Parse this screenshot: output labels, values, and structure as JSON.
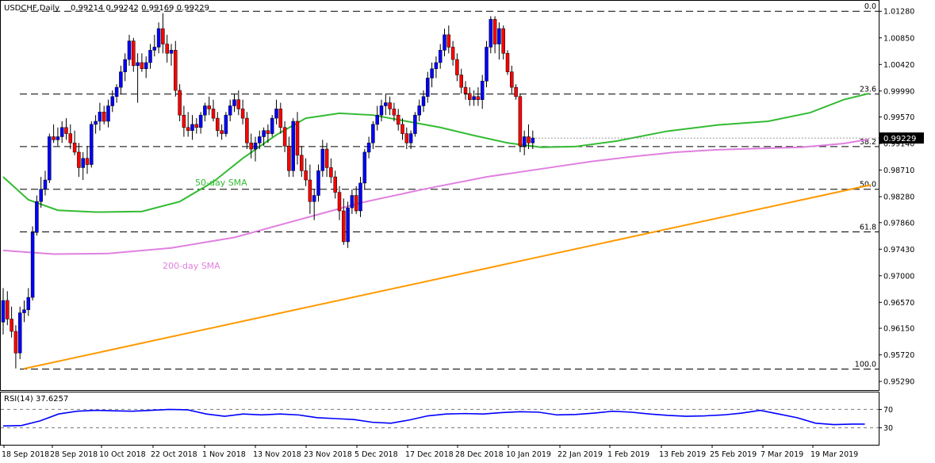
{
  "header": {
    "symbol": "USDCHF,Daily",
    "ohlc": "0.99214 0.99242 0.99169 0.99229"
  },
  "chart_data": {
    "type": "candlestick",
    "instrument": "USDCHF",
    "timeframe": "Daily",
    "ylim": [
      0.9515,
      1.0145
    ],
    "y_ticks": [
      "1.01280",
      "1.00850",
      "1.00420",
      "0.99990",
      "0.99570",
      "0.99140",
      "0.98710",
      "0.98280",
      "0.97860",
      "0.97430",
      "0.97000",
      "0.96570",
      "0.96150",
      "0.95720",
      "0.95290"
    ],
    "x_ticks": [
      "18 Sep 2018",
      "28 Sep 2018",
      "10 Oct 2018",
      "22 Oct 2018",
      "1 Nov 2018",
      "13 Nov 2018",
      "23 Nov 2018",
      "5 Dec 2018",
      "17 Dec 2018",
      "28 Dec 2018",
      "10 Jan 2019",
      "22 Jan 2019",
      "1 Feb 2019",
      "13 Feb 2019",
      "25 Feb 2019",
      "7 Mar 2019",
      "19 Mar 2019"
    ],
    "current_price": "0.99229",
    "colors": {
      "up": "#0000ff",
      "down": "#ff0000",
      "sma50": "#33bb33",
      "sma200": "#e080e0",
      "trendline": "#ff9900",
      "rsi": "#0000ff"
    },
    "fibonacci": [
      {
        "label": "0.0",
        "value": 1.0128
      },
      {
        "label": "23.6",
        "value": 0.9994
      },
      {
        "label": "38.2",
        "value": 0.9909
      },
      {
        "label": "50.0",
        "value": 0.984
      },
      {
        "label": "61.8",
        "value": 0.9771
      },
      {
        "label": "100.0",
        "value": 0.9549
      }
    ],
    "annotations": {
      "sma50": "50-day SMA",
      "sma200": "200-day SMA"
    },
    "trendline": [
      [
        0.95495,
        0
      ],
      [
        0.9847,
        121
      ]
    ],
    "candles": [
      [
        0.9625,
        0.968,
        0.9605,
        0.966
      ],
      [
        0.966,
        0.9675,
        0.962,
        0.963
      ],
      [
        0.963,
        0.965,
        0.96,
        0.961
      ],
      [
        0.961,
        0.962,
        0.955,
        0.9575
      ],
      [
        0.9575,
        0.965,
        0.9565,
        0.964
      ],
      [
        0.964,
        0.966,
        0.9625,
        0.9645
      ],
      [
        0.9645,
        0.968,
        0.9635,
        0.9665
      ],
      [
        0.9665,
        0.978,
        0.966,
        0.977
      ],
      [
        0.977,
        0.983,
        0.9765,
        0.982
      ],
      [
        0.982,
        0.986,
        0.981,
        0.984
      ],
      [
        0.984,
        0.987,
        0.983,
        0.9855
      ],
      [
        0.9855,
        0.993,
        0.985,
        0.9925
      ],
      [
        0.9925,
        0.9945,
        0.9915,
        0.992
      ],
      [
        0.992,
        0.994,
        0.991,
        0.9925
      ],
      [
        0.9925,
        0.995,
        0.9915,
        0.994
      ],
      [
        0.994,
        0.9955,
        0.992,
        0.993
      ],
      [
        0.993,
        0.9945,
        0.9905,
        0.9915
      ],
      [
        0.9915,
        0.9935,
        0.9895,
        0.99
      ],
      [
        0.99,
        0.9915,
        0.986,
        0.9875
      ],
      [
        0.9875,
        0.99,
        0.9855,
        0.989
      ],
      [
        0.989,
        0.991,
        0.9865,
        0.988
      ],
      [
        0.988,
        0.995,
        0.9875,
        0.9945
      ],
      [
        0.9945,
        0.996,
        0.993,
        0.995
      ],
      [
        0.995,
        0.998,
        0.9935,
        0.9965
      ],
      [
        0.9965,
        0.9975,
        0.9945,
        0.995
      ],
      [
        0.995,
        0.9985,
        0.994,
        0.9975
      ],
      [
        0.9975,
        1.0,
        0.9965,
        0.999
      ],
      [
        0.999,
        1.001,
        0.998,
        1.0005
      ],
      [
        1.0005,
        1.004,
        0.9995,
        1.003
      ],
      [
        1.003,
        1.006,
        1.0015,
        1.005
      ],
      [
        1.005,
        1.009,
        1.004,
        1.008
      ],
      [
        1.008,
        1.0085,
        1.003,
        1.004
      ],
      [
        1.004,
        1.006,
        0.998,
        1.0045
      ],
      [
        1.0045,
        1.006,
        1.003,
        1.0035
      ],
      [
        1.0035,
        1.0055,
        1.002,
        1.0045
      ],
      [
        1.0045,
        1.0075,
        1.0035,
        1.0065
      ],
      [
        1.0065,
        1.009,
        1.0055,
        1.007
      ],
      [
        1.007,
        1.011,
        1.006,
        1.01
      ],
      [
        1.01,
        1.0125,
        1.006,
        1.0075
      ],
      [
        1.0075,
        1.009,
        1.0045,
        1.006
      ],
      [
        1.006,
        1.0075,
        1.004,
        1.0065
      ],
      [
        1.0065,
        1.008,
        0.999,
        1.0
      ],
      [
        1.0,
        1.001,
        0.995,
        0.996
      ],
      [
        0.996,
        0.9975,
        0.9925,
        0.994
      ],
      [
        0.994,
        0.9965,
        0.9925,
        0.9935
      ],
      [
        0.9935,
        0.996,
        0.992,
        0.9945
      ],
      [
        0.9945,
        0.9955,
        0.993,
        0.994
      ],
      [
        0.994,
        0.9965,
        0.993,
        0.996
      ],
      [
        0.996,
        0.998,
        0.995,
        0.9975
      ],
      [
        0.9975,
        0.999,
        0.996,
        0.997
      ],
      [
        0.997,
        0.9985,
        0.995,
        0.9955
      ],
      [
        0.9955,
        0.9965,
        0.9925,
        0.9935
      ],
      [
        0.9935,
        0.9945,
        0.992,
        0.993
      ],
      [
        0.993,
        0.9965,
        0.9925,
        0.996
      ],
      [
        0.996,
        0.9985,
        0.995,
        0.9975
      ],
      [
        0.9975,
        0.9995,
        0.9965,
        0.9985
      ],
      [
        0.9985,
        1.0,
        0.996,
        0.997
      ],
      [
        0.997,
        0.9985,
        0.9945,
        0.9955
      ],
      [
        0.9955,
        0.9965,
        0.9905,
        0.9915
      ],
      [
        0.9915,
        0.993,
        0.989,
        0.9905
      ],
      [
        0.9905,
        0.9925,
        0.9885,
        0.9915
      ],
      [
        0.9915,
        0.9935,
        0.9905,
        0.9925
      ],
      [
        0.9925,
        0.994,
        0.991,
        0.9935
      ],
      [
        0.9935,
        0.9945,
        0.9915,
        0.993
      ],
      [
        0.993,
        0.996,
        0.9925,
        0.9955
      ],
      [
        0.9955,
        0.9985,
        0.9945,
        0.997
      ],
      [
        0.997,
        0.998,
        0.993,
        0.994
      ],
      [
        0.994,
        0.995,
        0.99,
        0.991
      ],
      [
        0.991,
        0.9925,
        0.986,
        0.987
      ],
      [
        0.987,
        0.9955,
        0.986,
        0.995
      ],
      [
        0.995,
        0.9965,
        0.988,
        0.9895
      ],
      [
        0.9895,
        0.991,
        0.986,
        0.987
      ],
      [
        0.987,
        0.989,
        0.9845,
        0.9855
      ],
      [
        0.9855,
        0.988,
        0.98,
        0.982
      ],
      [
        0.982,
        0.984,
        0.979,
        0.983
      ],
      [
        0.983,
        0.988,
        0.982,
        0.987
      ],
      [
        0.987,
        0.992,
        0.986,
        0.9905
      ],
      [
        0.9905,
        0.9915,
        0.986,
        0.9875
      ],
      [
        0.9875,
        0.989,
        0.985,
        0.986
      ],
      [
        0.986,
        0.987,
        0.9825,
        0.9835
      ],
      [
        0.9835,
        0.9845,
        0.979,
        0.9805
      ],
      [
        0.9805,
        0.9825,
        0.975,
        0.9755
      ],
      [
        0.9755,
        0.982,
        0.9745,
        0.981
      ],
      [
        0.981,
        0.984,
        0.98,
        0.983
      ],
      [
        0.983,
        0.9845,
        0.98,
        0.9805
      ],
      [
        0.9805,
        0.986,
        0.9795,
        0.985
      ],
      [
        0.985,
        0.9905,
        0.984,
        0.99
      ],
      [
        0.99,
        0.9925,
        0.989,
        0.9915
      ],
      [
        0.9915,
        0.995,
        0.9905,
        0.9945
      ],
      [
        0.9945,
        0.9975,
        0.9935,
        0.996
      ],
      [
        0.996,
        0.9985,
        0.995,
        0.9975
      ],
      [
        0.9975,
        0.9995,
        0.996,
        0.998
      ],
      [
        0.998,
        0.999,
        0.996,
        0.997
      ],
      [
        0.997,
        0.998,
        0.995,
        0.996
      ],
      [
        0.996,
        0.997,
        0.9935,
        0.9945
      ],
      [
        0.9945,
        0.9955,
        0.992,
        0.993
      ],
      [
        0.993,
        0.994,
        0.9905,
        0.9915
      ],
      [
        0.9915,
        0.9935,
        0.9905,
        0.993
      ],
      [
        0.993,
        0.9965,
        0.9925,
        0.996
      ],
      [
        0.996,
        0.9985,
        0.995,
        0.9975
      ],
      [
        0.9975,
        1.0,
        0.9965,
        0.999
      ],
      [
        0.999,
        1.003,
        0.998,
        1.002
      ],
      [
        1.002,
        1.0045,
        1.0005,
        1.0035
      ],
      [
        1.0035,
        1.0055,
        1.002,
        1.0045
      ],
      [
        1.0045,
        1.0075,
        1.0035,
        1.0065
      ],
      [
        1.0065,
        1.01,
        1.0055,
        1.009
      ],
      [
        1.009,
        1.0105,
        1.006,
        1.007
      ],
      [
        1.007,
        1.008,
        1.004,
        1.005
      ],
      [
        1.005,
        1.006,
        1.0015,
        1.0025
      ],
      [
        1.0025,
        1.0035,
        0.9995,
        1.0005
      ],
      [
        1.0005,
        1.0015,
        0.9985,
        0.9995
      ],
      [
        0.9995,
        1.0005,
        0.9975,
        0.9985
      ],
      [
        0.9985,
        1.0,
        0.9975,
        0.999
      ],
      [
        0.999,
        1.0005,
        0.9975,
        0.9985
      ],
      [
        0.9985,
        1.0025,
        0.997,
        1.0015
      ],
      [
        1.0015,
        1.008,
        1.0005,
        1.007
      ],
      [
        1.007,
        1.012,
        1.006,
        1.0115
      ],
      [
        1.0115,
        1.012,
        1.006,
        1.0075
      ],
      [
        1.0075,
        1.011,
        1.005,
        1.01
      ],
      [
        1.01,
        1.0105,
        1.005,
        1.006
      ],
      [
        1.006,
        1.0065,
        1.0025,
        1.003
      ],
      [
        1.003,
        1.004,
        0.9995,
        1.0005
      ],
      [
        1.0005,
        1.001,
        0.9985,
        0.999
      ],
      [
        0.999,
        0.9995,
        0.99,
        0.991
      ],
      [
        0.991,
        0.9935,
        0.9895,
        0.9925
      ],
      [
        0.9925,
        0.9945,
        0.9905,
        0.9915
      ],
      [
        0.9915,
        0.9935,
        0.9905,
        0.9923
      ]
    ],
    "sma50": [
      [
        0,
        0.986
      ],
      [
        6,
        0.9823
      ],
      [
        13,
        0.9806
      ],
      [
        22,
        0.9803
      ],
      [
        33,
        0.9804
      ],
      [
        42,
        0.982
      ],
      [
        50,
        0.9852
      ],
      [
        57,
        0.989
      ],
      [
        65,
        0.9928
      ],
      [
        72,
        0.9955
      ],
      [
        80,
        0.9963
      ],
      [
        88,
        0.996
      ],
      [
        96,
        0.995
      ],
      [
        104,
        0.994
      ],
      [
        112,
        0.9927
      ],
      [
        120,
        0.9915
      ],
      [
        128,
        0.9908
      ],
      [
        136,
        0.9909
      ],
      [
        146,
        0.9918
      ],
      [
        158,
        0.9934
      ],
      [
        170,
        0.9944
      ],
      [
        182,
        0.995
      ],
      [
        192,
        0.9964
      ],
      [
        200,
        0.9985
      ],
      [
        206,
        0.9995
      ]
    ],
    "sma200": [
      [
        0,
        0.9741
      ],
      [
        12,
        0.9735
      ],
      [
        25,
        0.9736
      ],
      [
        40,
        0.9745
      ],
      [
        55,
        0.9762
      ],
      [
        70,
        0.979
      ],
      [
        85,
        0.9818
      ],
      [
        100,
        0.984
      ],
      [
        115,
        0.986
      ],
      [
        130,
        0.9875
      ],
      [
        140,
        0.9885
      ],
      [
        150,
        0.9893
      ],
      [
        160,
        0.99
      ],
      [
        170,
        0.9904
      ],
      [
        180,
        0.9906
      ],
      [
        190,
        0.9908
      ],
      [
        200,
        0.9914
      ],
      [
        206,
        0.9921
      ]
    ],
    "rsi": {
      "label": "RSI(14) 37.6257",
      "ylim": [
        0,
        100
      ],
      "levels": [
        30,
        70
      ],
      "level_labels": [
        "30",
        "70"
      ],
      "points": [
        [
          0,
          34
        ],
        [
          6,
          35
        ],
        [
          12,
          45
        ],
        [
          18,
          60
        ],
        [
          24,
          66
        ],
        [
          30,
          68
        ],
        [
          36,
          67
        ],
        [
          42,
          66
        ],
        [
          48,
          68
        ],
        [
          54,
          70
        ],
        [
          60,
          69
        ],
        [
          66,
          60
        ],
        [
          72,
          55
        ],
        [
          78,
          60
        ],
        [
          84,
          58
        ],
        [
          90,
          60
        ],
        [
          96,
          58
        ],
        [
          102,
          52
        ],
        [
          108,
          50
        ],
        [
          114,
          48
        ],
        [
          120,
          42
        ],
        [
          126,
          40
        ],
        [
          132,
          47
        ],
        [
          138,
          56
        ],
        [
          144,
          60
        ],
        [
          150,
          61
        ],
        [
          156,
          60
        ],
        [
          162,
          63
        ],
        [
          168,
          65
        ],
        [
          174,
          64
        ],
        [
          180,
          58
        ],
        [
          186,
          59
        ],
        [
          192,
          62
        ],
        [
          198,
          66
        ],
        [
          204,
          64
        ],
        [
          210,
          60
        ],
        [
          216,
          57
        ],
        [
          222,
          55
        ],
        [
          228,
          56
        ],
        [
          234,
          58
        ],
        [
          240,
          62
        ],
        [
          246,
          68
        ],
        [
          252,
          60
        ],
        [
          258,
          52
        ],
        [
          264,
          40
        ],
        [
          270,
          37
        ],
        [
          276,
          38
        ],
        [
          280,
          38
        ]
      ]
    }
  }
}
